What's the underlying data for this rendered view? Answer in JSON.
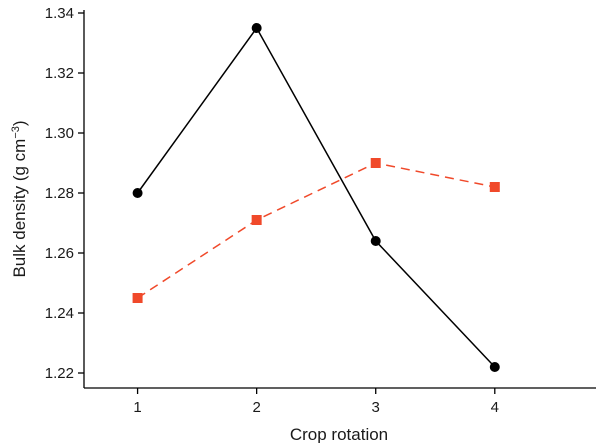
{
  "chart_data": {
    "type": "line",
    "title": "",
    "xlabel": "Crop rotation",
    "ylabel_main": "Bulk density (g cm",
    "ylabel_sup": "−3",
    "ylabel_close": ")",
    "x": [
      1,
      2,
      3,
      4
    ],
    "xlim": [
      0.55,
      4.85
    ],
    "ylim": [
      1.215,
      1.341
    ],
    "xticks": [
      1,
      2,
      3,
      4
    ],
    "yticks": [
      1.22,
      1.24,
      1.26,
      1.28,
      1.3,
      1.32,
      1.34
    ],
    "ytick_labels": [
      "1.22",
      "1.24",
      "1.26",
      "1.28",
      "1.30",
      "1.32",
      "1.34"
    ],
    "grid": false,
    "legend": "none",
    "series": [
      {
        "values": [
          1.28,
          1.335,
          1.264,
          1.222
        ],
        "color": "#000000",
        "marker": "circle",
        "line_style": "solid"
      },
      {
        "values": [
          1.245,
          1.271,
          1.29,
          1.282
        ],
        "color": "#f0492a",
        "marker": "square",
        "line_style": "dashed"
      }
    ]
  }
}
